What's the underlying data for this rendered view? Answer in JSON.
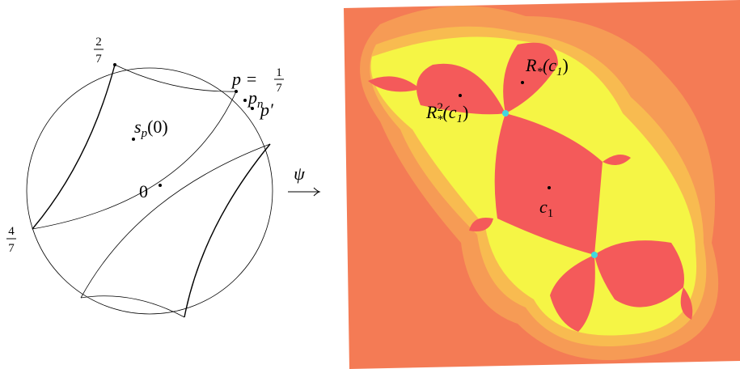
{
  "disk": {
    "angle_2_7": {
      "numerator": "2",
      "denominator": "7"
    },
    "angle_4_7": {
      "numerator": "4",
      "denominator": "7"
    },
    "p": {
      "text": "p =",
      "numerator": "1",
      "denominator": "7"
    },
    "p_n": {
      "base": "p",
      "sub": "n"
    },
    "p_prime": "p′",
    "s_p_0": {
      "base": "s",
      "sub": "p",
      "rest": "(0)"
    },
    "zero": "0"
  },
  "arrow": {
    "label": "ψ"
  },
  "julia": {
    "r_c1": {
      "base": "R",
      "sub": "*",
      "open": "(c",
      "sub2": "1",
      "close": ")"
    },
    "r2_c1": {
      "base": "R",
      "sup": "2",
      "sub": "*",
      "open": "(c",
      "sub2": "1",
      "close": ")"
    },
    "c1": {
      "base": "c",
      "sub": "1"
    }
  }
}
